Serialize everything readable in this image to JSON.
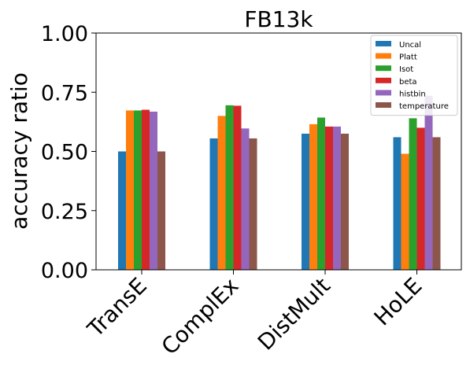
{
  "chart_data": {
    "type": "bar",
    "title": "FB13k",
    "xlabel": "",
    "ylabel": "accuracy ratio",
    "ylim": [
      0,
      1
    ],
    "yticks": [
      0,
      0.25,
      0.5,
      0.75,
      1.0
    ],
    "ytick_labels": [
      "0.00",
      "0.25",
      "0.50",
      "0.75",
      "1.00"
    ],
    "categories": [
      "TransE",
      "ComplEx",
      "DistMult",
      "HoLE"
    ],
    "legend_position": "top-right",
    "grid": false,
    "series": [
      {
        "name": "Uncal",
        "color": "#1f77b4",
        "values": [
          0.5,
          0.555,
          0.575,
          0.56
        ]
      },
      {
        "name": "Platt",
        "color": "#ff7f0e",
        "values": [
          0.673,
          0.65,
          0.615,
          0.49
        ]
      },
      {
        "name": "Isot",
        "color": "#2ca02c",
        "values": [
          0.673,
          0.695,
          0.643,
          0.64
        ]
      },
      {
        "name": "beta",
        "color": "#d62728",
        "values": [
          0.676,
          0.693,
          0.605,
          0.6
        ]
      },
      {
        "name": "histbin",
        "color": "#9467bd",
        "values": [
          0.668,
          0.597,
          0.605,
          0.735
        ]
      },
      {
        "name": "temperature",
        "color": "#8c564b",
        "values": [
          0.5,
          0.555,
          0.575,
          0.56
        ]
      }
    ]
  }
}
